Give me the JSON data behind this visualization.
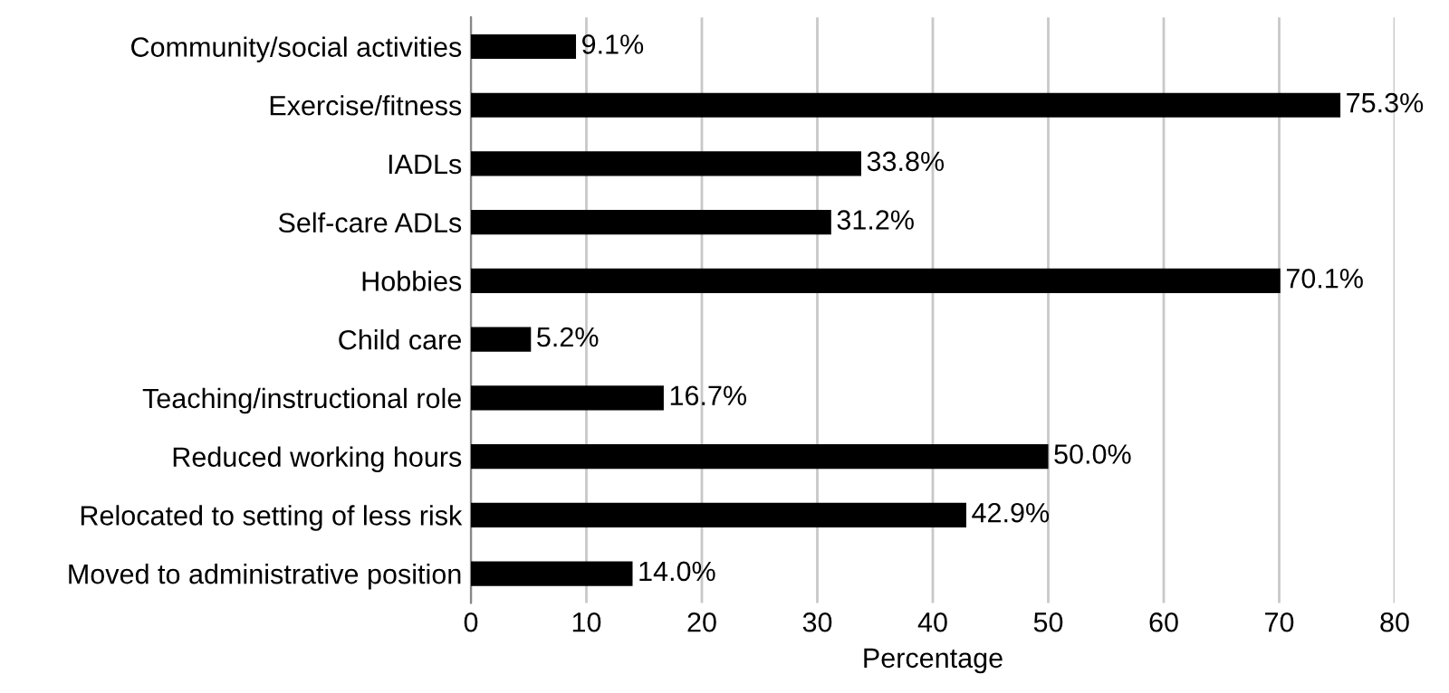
{
  "chart_data": {
    "type": "bar",
    "orientation": "horizontal",
    "xlabel": "Percentage",
    "categories": [
      "Community/social activities",
      "Exercise/fitness",
      "IADLs",
      "Self-care ADLs",
      "Hobbies",
      "Child care",
      "Teaching/instructional role",
      "Reduced working hours",
      "Relocated to setting of less risk",
      "Moved to administrative position"
    ],
    "values": [
      9.1,
      75.3,
      33.8,
      31.2,
      70.1,
      5.2,
      16.7,
      50.0,
      42.9,
      14.0
    ],
    "value_labels": [
      "9.1%",
      "75.3%",
      "33.8%",
      "31.2%",
      "70.1%",
      "5.2%",
      "16.7%",
      "50.0%",
      "42.9%",
      "14.0%"
    ],
    "color": "#000000",
    "xlim": [
      0,
      80
    ],
    "xticks": [
      0,
      10,
      20,
      30,
      40,
      50,
      60,
      70,
      80
    ],
    "grid": "x",
    "legend": false
  }
}
